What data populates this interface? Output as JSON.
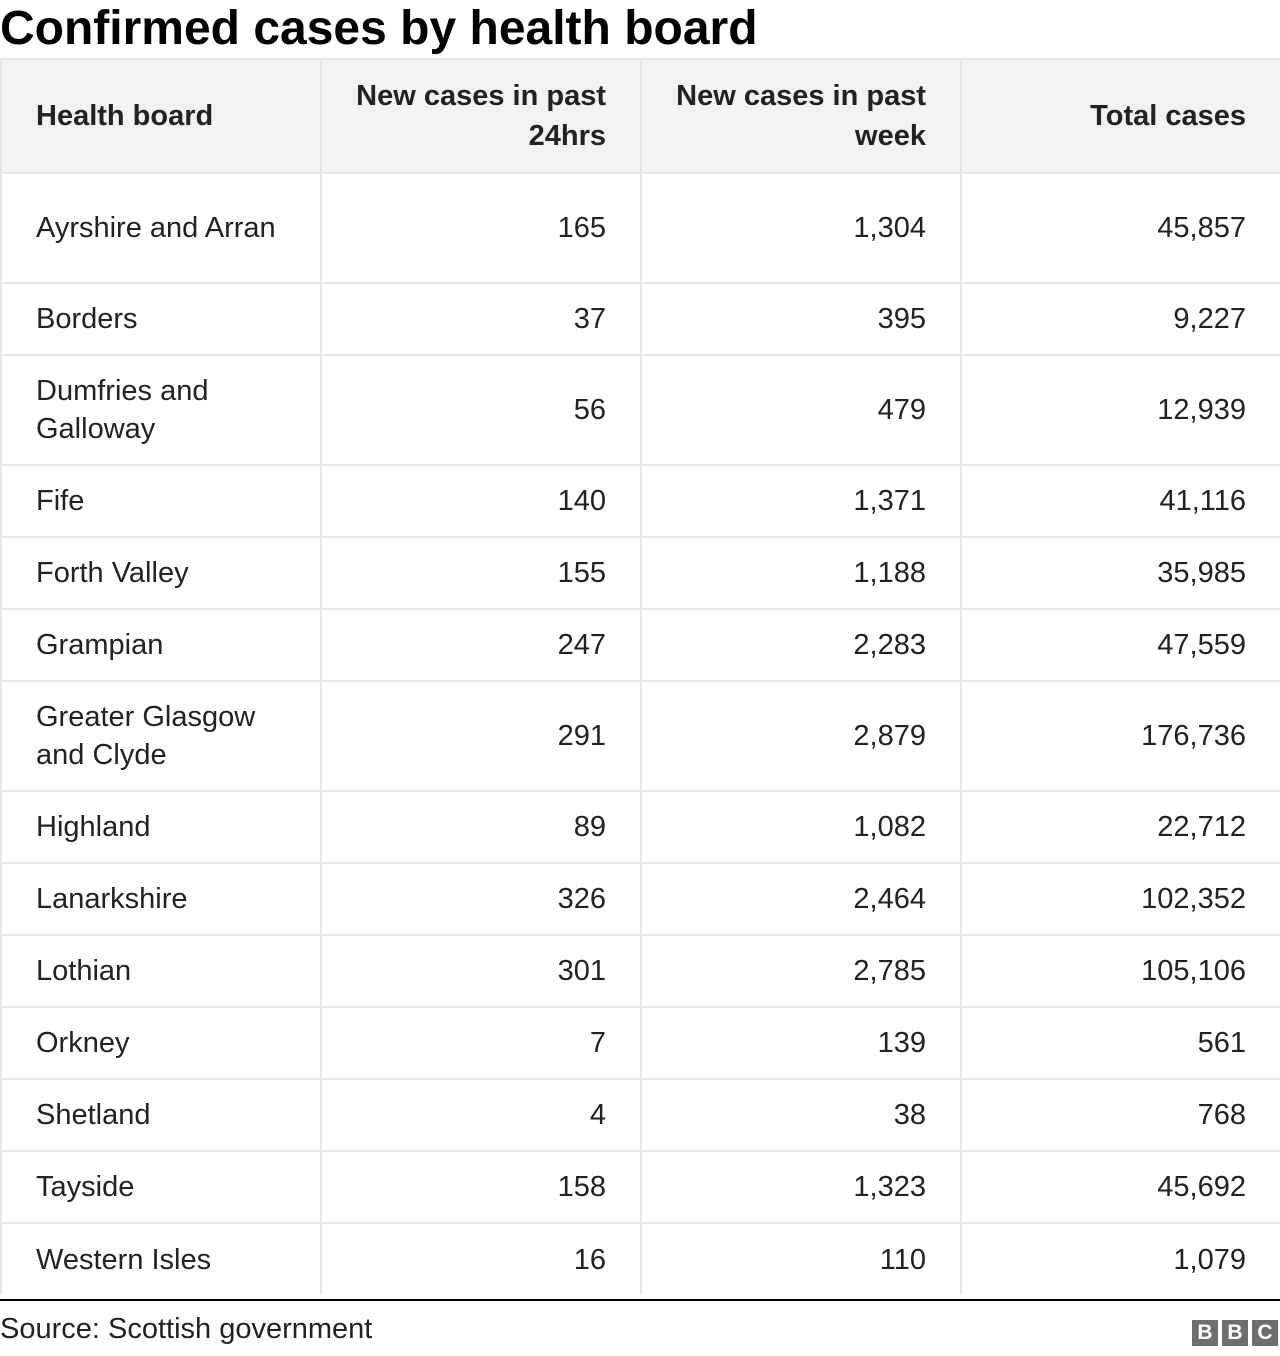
{
  "chart_data": {
    "type": "table",
    "title": "Confirmed cases by health board",
    "columns": [
      "Health board",
      "New cases in past 24hrs",
      "New cases in past week",
      "Total cases"
    ],
    "rows": [
      {
        "board": "Ayrshire and Arran",
        "past_24hrs": "165",
        "past_week": "1,304",
        "total": "45,857"
      },
      {
        "board": "Borders",
        "past_24hrs": "37",
        "past_week": "395",
        "total": "9,227"
      },
      {
        "board": "Dumfries and Galloway",
        "past_24hrs": "56",
        "past_week": "479",
        "total": "12,939"
      },
      {
        "board": "Fife",
        "past_24hrs": "140",
        "past_week": "1,371",
        "total": "41,116"
      },
      {
        "board": "Forth Valley",
        "past_24hrs": "155",
        "past_week": "1,188",
        "total": "35,985"
      },
      {
        "board": "Grampian",
        "past_24hrs": "247",
        "past_week": "2,283",
        "total": "47,559"
      },
      {
        "board": "Greater Glasgow and Clyde",
        "past_24hrs": "291",
        "past_week": "2,879",
        "total": "176,736"
      },
      {
        "board": "Highland",
        "past_24hrs": "89",
        "past_week": "1,082",
        "total": "22,712"
      },
      {
        "board": "Lanarkshire",
        "past_24hrs": "326",
        "past_week": "2,464",
        "total": "102,352"
      },
      {
        "board": "Lothian",
        "past_24hrs": "301",
        "past_week": "2,785",
        "total": "105,106"
      },
      {
        "board": "Orkney",
        "past_24hrs": "7",
        "past_week": "139",
        "total": "561"
      },
      {
        "board": "Shetland",
        "past_24hrs": "4",
        "past_week": "38",
        "total": "768"
      },
      {
        "board": "Tayside",
        "past_24hrs": "158",
        "past_week": "1,323",
        "total": "45,692"
      },
      {
        "board": "Western Isles",
        "past_24hrs": "16",
        "past_week": "110",
        "total": "1,079"
      }
    ]
  },
  "footer": {
    "source": "Source: Scottish government",
    "logo_letters": [
      "B",
      "B",
      "C"
    ]
  },
  "colors": {
    "header_background": "#f2f2f2",
    "cell_border": "#e7e7e7",
    "text": "#222222",
    "logo_background": "#6e6e6e"
  }
}
